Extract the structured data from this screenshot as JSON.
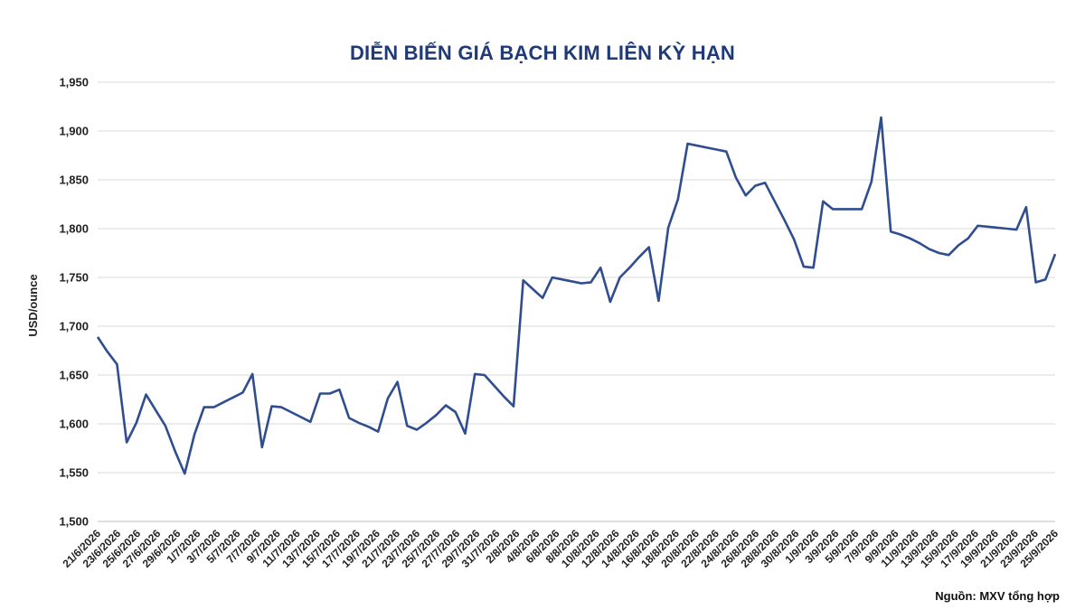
{
  "chart_data": {
    "type": "line",
    "title": "DIỄN BIẾN GIÁ BẠCH KIM LIÊN KỲ HẠN",
    "ylabel": "USD/ounce",
    "xlabel": "",
    "ylim": [
      1500,
      1950
    ],
    "yticks": [
      "1,500",
      "1,550",
      "1,600",
      "1,650",
      "1,700",
      "1,750",
      "1,800",
      "1,850",
      "1,900",
      "1,950"
    ],
    "grid": true,
    "legend": "none",
    "line_color": "#2f4d8f",
    "xtick_labels": [
      "21/6/2026",
      "23/6/2026",
      "25/6/2026",
      "27/6/2026",
      "29/6/2026",
      "1/7/2026",
      "3/7/2026",
      "5/7/2026",
      "7/7/2026",
      "9/7/2026",
      "11/7/2026",
      "13/7/2026",
      "15/7/2026",
      "17/7/2026",
      "19/7/2026",
      "21/7/2026",
      "23/7/2026",
      "25/7/2026",
      "27/7/2026",
      "29/7/2026",
      "31/7/2026",
      "2/8/2026",
      "4/8/2026",
      "6/8/2026",
      "8/8/2026",
      "10/8/2026",
      "12/8/2026",
      "14/8/2026",
      "16/8/2026",
      "18/8/2026",
      "20/8/2026",
      "22/8/2026",
      "24/8/2026",
      "26/8/2026",
      "28/8/2026",
      "30/8/2026",
      "1/9/2026",
      "3/9/2026",
      "5/9/2026",
      "7/9/2026",
      "9/9/2026",
      "11/9/2026",
      "13/9/2026",
      "15/9/2026",
      "17/9/2026",
      "19/9/2026",
      "21/9/2026",
      "23/9/2026",
      "25/9/2026"
    ],
    "series": [
      {
        "values": [
          1689,
          1674,
          1661,
          1581,
          1601,
          1630,
          1614,
          1598,
          1572,
          1549,
          1589,
          1617,
          1617,
          1622,
          1627,
          1632,
          1651,
          1576,
          1618,
          1617,
          1612,
          1607,
          1602,
          1631,
          1631,
          1635,
          1606,
          1601,
          1597,
          1592,
          1626,
          1643,
          1598,
          1594,
          1601,
          1609,
          1619,
          1612,
          1590,
          1651,
          1650,
          1639,
          1628,
          1618,
          1747,
          1738,
          1729,
          1750,
          1748,
          1746,
          1744,
          1745,
          1760,
          1725,
          1750,
          1760,
          1771,
          1781,
          1726,
          1801,
          1830,
          1887,
          1885,
          1883,
          1881,
          1879,
          1852,
          1834,
          1844,
          1847,
          1828,
          1809,
          1789,
          1761,
          1760,
          1828,
          1820,
          1820,
          1820,
          1820,
          1848,
          1914,
          1797,
          1794,
          1790,
          1785,
          1779,
          1775,
          1773,
          1783,
          1790,
          1803,
          1802,
          1801,
          1800,
          1799,
          1822,
          1745,
          1748,
          1774
        ]
      }
    ]
  },
  "source_note": "Nguồn: MXV tổng hợp"
}
